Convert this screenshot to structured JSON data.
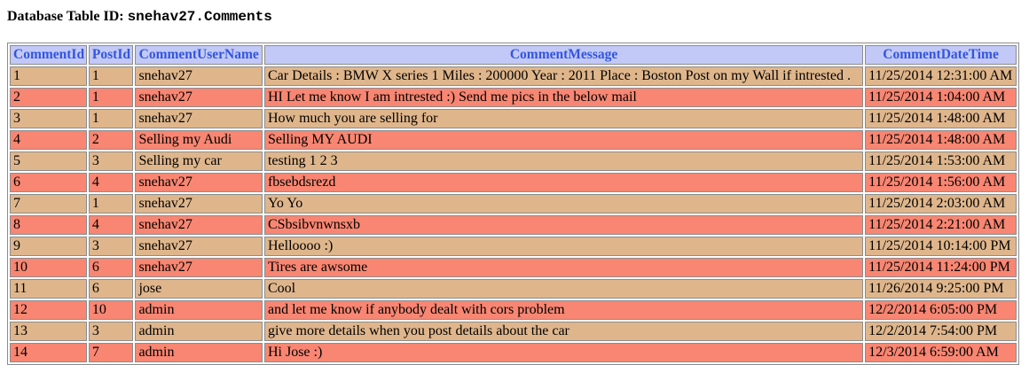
{
  "page": {
    "title_label": "Database Table ID:",
    "title_id": "snehav27.Comments"
  },
  "table": {
    "columns": [
      "CommentId",
      "PostId",
      "CommentUserName",
      "CommentMessage",
      "CommentDateTime"
    ],
    "rows": [
      [
        "1",
        "1",
        "snehav27",
        "Car Details : BMW X series 1 Miles : 200000 Year : 2011 Place : Boston Post on my Wall if intrested .",
        "11/25/2014 12:31:00 AM"
      ],
      [
        "2",
        "1",
        "snehav27",
        "HI Let me know I am intrested :) Send me pics in the below mail",
        "11/25/2014 1:04:00 AM"
      ],
      [
        "3",
        "1",
        "snehav27",
        "How much you are selling for",
        "11/25/2014 1:48:00 AM"
      ],
      [
        "4",
        "2",
        "Selling my Audi",
        "Selling MY AUDI",
        "11/25/2014 1:48:00 AM"
      ],
      [
        "5",
        "3",
        "Selling my car",
        "testing 1 2 3",
        "11/25/2014 1:53:00 AM"
      ],
      [
        "6",
        "4",
        "snehav27",
        "fbsebdsrezd",
        "11/25/2014 1:56:00 AM"
      ],
      [
        "7",
        "1",
        "snehav27",
        "Yo Yo",
        "11/25/2014 2:03:00 AM"
      ],
      [
        "8",
        "4",
        "snehav27",
        "CSbsibvnwnsxb",
        "11/25/2014 2:21:00 AM"
      ],
      [
        "9",
        "3",
        "snehav27",
        "Helloooo :)",
        "11/25/2014 10:14:00 PM"
      ],
      [
        "10",
        "6",
        "snehav27",
        "Tires are awsome",
        "11/25/2014 11:24:00 PM"
      ],
      [
        "11",
        "6",
        "jose",
        "Cool",
        "11/26/2014 9:25:00 PM"
      ],
      [
        "12",
        "10",
        "admin",
        "and let me know if anybody dealt with cors problem",
        "12/2/2014 6:05:00 PM"
      ],
      [
        "13",
        "3",
        "admin",
        "give more details when you post details about the car",
        "12/2/2014 7:54:00 PM"
      ],
      [
        "14",
        "7",
        "admin",
        "Hi Jose :)",
        "12/3/2014 6:59:00 AM"
      ]
    ]
  },
  "colors": {
    "header_bg": "#c2c9f7",
    "header_text": "#3355dd",
    "row_odd_bg": "#dfb68c",
    "row_even_bg": "#f88672",
    "border": "#8c8c8c"
  }
}
